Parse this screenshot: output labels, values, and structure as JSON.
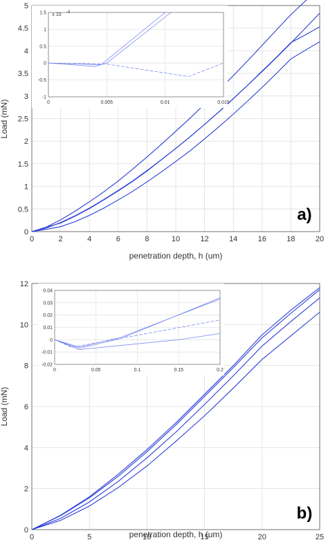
{
  "colors": {
    "series": "#2a3fd6",
    "inset_series": "#6b7cf0",
    "grid": "#e4e4e4",
    "axis": "#555555",
    "tick_text": "#333333"
  },
  "chart_data": [
    {
      "id": "a",
      "type": "line",
      "panel_label": "a)",
      "xlabel": "penetration depth, h (um)",
      "ylabel": "Load (mN)",
      "xlim": [
        0,
        20
      ],
      "ylim": [
        0,
        5
      ],
      "xticks": [
        "0",
        "2",
        "4",
        "6",
        "8",
        "10",
        "12",
        "14",
        "16",
        "18",
        "20"
      ],
      "yticks": [
        "0",
        "0.5",
        "1",
        "1.5",
        "2",
        "2.5",
        "3",
        "3.5",
        "4",
        "4.5",
        "5"
      ],
      "grid": true,
      "series": [
        {
          "x": [
            0,
            1,
            2,
            3,
            4,
            5,
            6,
            7,
            8,
            9,
            10,
            11,
            12,
            13,
            14,
            15,
            16,
            17,
            18,
            19,
            20
          ],
          "y": [
            0,
            0.1,
            0.26,
            0.45,
            0.66,
            0.88,
            1.12,
            1.38,
            1.65,
            1.93,
            2.22,
            2.51,
            2.82,
            3.13,
            3.45,
            3.78,
            4.12,
            4.46,
            4.8,
            5.1,
            5.4
          ]
        },
        {
          "x": [
            0,
            1,
            2,
            3,
            4,
            5,
            6,
            7,
            8,
            9,
            10,
            11,
            12,
            13,
            14,
            15,
            16,
            17,
            18,
            19,
            20
          ],
          "y": [
            0,
            0.1,
            0.19,
            0.34,
            0.51,
            0.7,
            0.9,
            1.11,
            1.34,
            1.59,
            1.84,
            2.1,
            2.37,
            2.65,
            2.94,
            3.24,
            3.54,
            3.85,
            4.17,
            4.5,
            4.83
          ]
        },
        {
          "x": [
            0,
            1,
            2,
            3,
            4,
            5,
            6,
            7,
            8,
            9,
            10,
            11,
            12,
            13,
            14,
            15,
            16,
            17,
            18,
            19,
            20
          ],
          "y": [
            0,
            0.08,
            0.2,
            0.35,
            0.52,
            0.71,
            0.91,
            1.12,
            1.35,
            1.59,
            1.84,
            2.1,
            2.37,
            2.65,
            2.94,
            3.24,
            3.55,
            3.86,
            4.18,
            4.35,
            4.53
          ]
        },
        {
          "x": [
            0,
            1,
            2,
            3,
            4,
            5,
            6,
            7,
            8,
            9,
            10,
            11,
            12,
            13,
            14,
            15,
            16,
            17,
            18,
            19,
            20
          ],
          "y": [
            0,
            0.05,
            0.11,
            0.22,
            0.36,
            0.52,
            0.7,
            0.89,
            1.1,
            1.32,
            1.55,
            1.79,
            2.05,
            2.32,
            2.6,
            2.89,
            3.19,
            3.5,
            3.82,
            4.01,
            4.2
          ]
        }
      ],
      "inset": {
        "xlim": [
          0,
          0.015
        ],
        "ylim": [
          -0.001,
          0.0015
        ],
        "exponent_label": "x 10",
        "exponent_power": "-3",
        "xticks": [
          "0",
          "0.005",
          "0.01",
          "0.015"
        ],
        "yticks": [
          "-1",
          "-0.5",
          "0",
          "0.5",
          "1",
          "1.5"
        ],
        "xtick_values": [
          0,
          0.005,
          0.01,
          0.015
        ],
        "ytick_values": [
          -0.001,
          -0.0005,
          0,
          0.0005,
          0.001,
          0.0015
        ],
        "series": [
          {
            "x": [
              0,
              0.0045,
              0.01
            ],
            "y": [
              0,
              -5e-05,
              0.0015
            ]
          },
          {
            "x": [
              0,
              0.004,
              0.005,
              0.0105
            ],
            "y": [
              0,
              -0.0001,
              0,
              0.0015
            ]
          },
          {
            "x": [
              0,
              0.005,
              0.012,
              0.015
            ],
            "y": [
              0,
              -3e-05,
              -0.0004,
              0
            ]
          }
        ]
      }
    },
    {
      "id": "b",
      "type": "line",
      "panel_label": "b)",
      "xlabel": "penetration depth, h (um)",
      "ylabel": "Load (mN)",
      "xlim": [
        0,
        25
      ],
      "ylim": [
        0,
        12
      ],
      "xticks": [
        "0",
        "5",
        "10",
        "15",
        "20",
        "25"
      ],
      "yticks": [
        "0",
        "2",
        "4",
        "6",
        "8",
        "10",
        "12"
      ],
      "grid": true,
      "series": [
        {
          "x": [
            0,
            2.5,
            5,
            7.5,
            10,
            12.5,
            15,
            17.5,
            20,
            22.5,
            25
          ],
          "y": [
            0,
            0.7,
            1.6,
            2.7,
            3.9,
            5.2,
            6.6,
            8.0,
            9.5,
            10.7,
            11.8
          ]
        },
        {
          "x": [
            0,
            2.5,
            5,
            7.5,
            10,
            12.5,
            15,
            17.5,
            20,
            22.5,
            25
          ],
          "y": [
            0,
            0.68,
            1.55,
            2.6,
            3.8,
            5.1,
            6.5,
            7.9,
            9.35,
            10.55,
            11.7
          ]
        },
        {
          "x": [
            0,
            2.5,
            5,
            7.5,
            10,
            12.5,
            15,
            17.5,
            20,
            22.5,
            25
          ],
          "y": [
            0,
            0.55,
            1.35,
            2.35,
            3.5,
            4.75,
            6.1,
            7.5,
            8.95,
            10.15,
            11.3
          ]
        },
        {
          "x": [
            0,
            2.5,
            5,
            7.5,
            10,
            12.5,
            15,
            17.5,
            20,
            22.5,
            25
          ],
          "y": [
            0,
            0.45,
            1.15,
            2.05,
            3.1,
            4.3,
            5.55,
            6.9,
            8.3,
            9.45,
            10.6
          ]
        }
      ],
      "inset": {
        "xlim": [
          0,
          0.2
        ],
        "ylim": [
          -0.02,
          0.04
        ],
        "exponent_label": "",
        "exponent_power": "",
        "xticks": [
          "0",
          "0.05",
          "0.1",
          "0.15",
          "0.2"
        ],
        "yticks": [
          "-0.02",
          "-0.01",
          "0",
          "0.01",
          "0.02",
          "0.03",
          "0.04"
        ],
        "xtick_values": [
          0,
          0.05,
          0.1,
          0.15,
          0.2
        ],
        "ytick_values": [
          -0.02,
          -0.01,
          0,
          0.01,
          0.02,
          0.03,
          0.04
        ],
        "series": [
          {
            "x": [
              0,
              0.03,
              0.08,
              0.2
            ],
            "y": [
              0,
              -0.007,
              0.001,
              0.034
            ]
          },
          {
            "x": [
              0,
              0.03,
              0.08,
              0.2
            ],
            "y": [
              0,
              -0.006,
              0.002,
              0.033
            ]
          },
          {
            "x": [
              0,
              0.02,
              0.03,
              0.2
            ],
            "y": [
              0,
              -0.006,
              -0.005,
              0.016
            ]
          },
          {
            "x": [
              0,
              0.03,
              0.15,
              0.2
            ],
            "y": [
              0,
              -0.008,
              0,
              0.005
            ]
          }
        ]
      }
    }
  ]
}
